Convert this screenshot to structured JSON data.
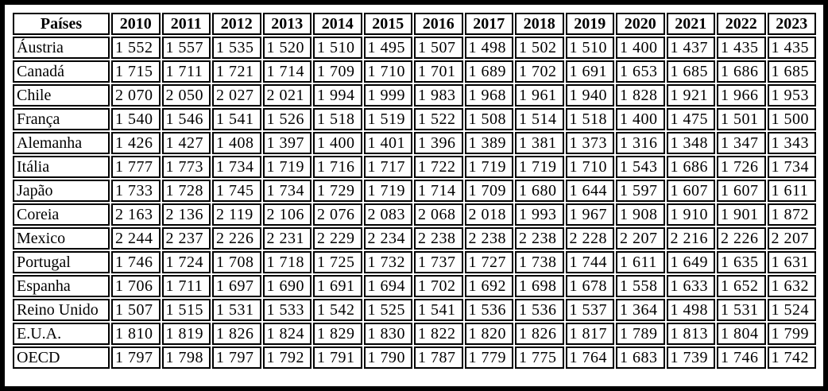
{
  "colors": {
    "frame_border": "#000000",
    "cell_border": "#000000",
    "background": "#ffffff",
    "text": "#000000"
  },
  "table": {
    "columns": [
      "Países",
      "2010",
      "2011",
      "2012",
      "2013",
      "2014",
      "2015",
      "2016",
      "2017",
      "2018",
      "2019",
      "2020",
      "2021",
      "2022",
      "2023"
    ],
    "rows": [
      {
        "label": "Áustria",
        "values": [
          "1 552",
          "1 557",
          "1 535",
          "1 520",
          "1 510",
          "1 495",
          "1 507",
          "1 498",
          "1 502",
          "1 510",
          "1 400",
          "1 437",
          "1 435",
          "1 435"
        ]
      },
      {
        "label": "Canadá",
        "values": [
          "1 715",
          "1 711",
          "1 721",
          "1 714",
          "1 709",
          "1 710",
          "1 701",
          "1 689",
          "1 702",
          "1 691",
          "1 653",
          "1 685",
          "1 686",
          "1 685"
        ]
      },
      {
        "label": "Chile",
        "values": [
          "2 070",
          "2 050",
          "2 027",
          "2 021",
          "1 994",
          "1 999",
          "1 983",
          "1 968",
          "1 961",
          "1 940",
          "1 828",
          "1 921",
          "1 966",
          "1 953"
        ]
      },
      {
        "label": "França",
        "values": [
          "1 540",
          "1 546",
          "1 541",
          "1 526",
          "1 518",
          "1 519",
          "1 522",
          "1 508",
          "1 514",
          "1 518",
          "1 400",
          "1 475",
          "1 501",
          "1 500"
        ]
      },
      {
        "label": "Alemanha",
        "values": [
          "1 426",
          "1 427",
          "1 408",
          "1 397",
          "1 400",
          "1 401",
          "1 396",
          "1 389",
          "1 381",
          "1 373",
          "1 316",
          "1 348",
          "1 347",
          "1 343"
        ]
      },
      {
        "label": "Itália",
        "values": [
          "1 777",
          "1 773",
          "1 734",
          "1 719",
          "1 716",
          "1 717",
          "1 722",
          "1 719",
          "1 719",
          "1 710",
          "1 543",
          "1 686",
          "1 726",
          "1 734"
        ]
      },
      {
        "label": "Japão",
        "values": [
          "1 733",
          "1 728",
          "1 745",
          "1 734",
          "1 729",
          "1 719",
          "1 714",
          "1 709",
          "1 680",
          "1 644",
          "1 597",
          "1 607",
          "1 607",
          "1 611"
        ]
      },
      {
        "label": "Coreia",
        "values": [
          "2 163",
          "2 136",
          "2 119",
          "2 106",
          "2 076",
          "2 083",
          "2 068",
          "2 018",
          "1 993",
          "1 967",
          "1 908",
          "1 910",
          "1 901",
          "1 872"
        ]
      },
      {
        "label": "Mexico",
        "values": [
          "2 244",
          "2 237",
          "2 226",
          "2 231",
          "2 229",
          "2 234",
          "2 238",
          "2 238",
          "2 238",
          "2 228",
          "2 207",
          "2 216",
          "2 226",
          "2 207"
        ]
      },
      {
        "label": "Portugal",
        "values": [
          "1 746",
          "1 724",
          "1 708",
          "1 718",
          "1 725",
          "1 732",
          "1 737",
          "1 727",
          "1 738",
          "1 744",
          "1 611",
          "1 649",
          "1 635",
          "1 631"
        ]
      },
      {
        "label": "Espanha",
        "values": [
          "1 706",
          "1 711",
          "1 697",
          "1 690",
          "1 691",
          "1 694",
          "1 702",
          "1 692",
          "1 698",
          "1 678",
          "1 558",
          "1 633",
          "1 652",
          "1 632"
        ]
      },
      {
        "label": "Reino Unido",
        "values": [
          "1 507",
          "1 515",
          "1 531",
          "1 533",
          "1 542",
          "1 525",
          "1 541",
          "1 536",
          "1 536",
          "1 537",
          "1 364",
          "1 498",
          "1 531",
          "1 524"
        ]
      },
      {
        "label": "E.U.A.",
        "values": [
          "1 810",
          "1 819",
          "1 826",
          "1 824",
          "1 829",
          "1 830",
          "1 822",
          "1 820",
          "1 826",
          "1 817",
          "1 789",
          "1 813",
          "1 804",
          "1 799"
        ]
      },
      {
        "label": "OECD",
        "values": [
          "1 797",
          "1 798",
          "1 797",
          "1 792",
          "1 791",
          "1 790",
          "1 787",
          "1 779",
          "1 775",
          "1 764",
          "1 683",
          "1 739",
          "1 746",
          "1 742"
        ]
      }
    ]
  },
  "chart_data": {
    "type": "table",
    "categories": [
      "2010",
      "2011",
      "2012",
      "2013",
      "2014",
      "2015",
      "2016",
      "2017",
      "2018",
      "2019",
      "2020",
      "2021",
      "2022",
      "2023"
    ],
    "row_header_label": "Países",
    "series": [
      {
        "name": "Áustria",
        "values": [
          1552,
          1557,
          1535,
          1520,
          1510,
          1495,
          1507,
          1498,
          1502,
          1510,
          1400,
          1437,
          1435,
          1435
        ]
      },
      {
        "name": "Canadá",
        "values": [
          1715,
          1711,
          1721,
          1714,
          1709,
          1710,
          1701,
          1689,
          1702,
          1691,
          1653,
          1685,
          1686,
          1685
        ]
      },
      {
        "name": "Chile",
        "values": [
          2070,
          2050,
          2027,
          2021,
          1994,
          1999,
          1983,
          1968,
          1961,
          1940,
          1828,
          1921,
          1966,
          1953
        ]
      },
      {
        "name": "França",
        "values": [
          1540,
          1546,
          1541,
          1526,
          1518,
          1519,
          1522,
          1508,
          1514,
          1518,
          1400,
          1475,
          1501,
          1500
        ]
      },
      {
        "name": "Alemanha",
        "values": [
          1426,
          1427,
          1408,
          1397,
          1400,
          1401,
          1396,
          1389,
          1381,
          1373,
          1316,
          1348,
          1347,
          1343
        ]
      },
      {
        "name": "Itália",
        "values": [
          1777,
          1773,
          1734,
          1719,
          1716,
          1717,
          1722,
          1719,
          1719,
          1710,
          1543,
          1686,
          1726,
          1734
        ]
      },
      {
        "name": "Japão",
        "values": [
          1733,
          1728,
          1745,
          1734,
          1729,
          1719,
          1714,
          1709,
          1680,
          1644,
          1597,
          1607,
          1607,
          1611
        ]
      },
      {
        "name": "Coreia",
        "values": [
          2163,
          2136,
          2119,
          2106,
          2076,
          2083,
          2068,
          2018,
          1993,
          1967,
          1908,
          1910,
          1901,
          1872
        ]
      },
      {
        "name": "Mexico",
        "values": [
          2244,
          2237,
          2226,
          2231,
          2229,
          2234,
          2238,
          2238,
          2238,
          2228,
          2207,
          2216,
          2226,
          2207
        ]
      },
      {
        "name": "Portugal",
        "values": [
          1746,
          1724,
          1708,
          1718,
          1725,
          1732,
          1737,
          1727,
          1738,
          1744,
          1611,
          1649,
          1635,
          1631
        ]
      },
      {
        "name": "Espanha",
        "values": [
          1706,
          1711,
          1697,
          1690,
          1691,
          1694,
          1702,
          1692,
          1698,
          1678,
          1558,
          1633,
          1652,
          1632
        ]
      },
      {
        "name": "Reino Unido",
        "values": [
          1507,
          1515,
          1531,
          1533,
          1542,
          1525,
          1541,
          1536,
          1536,
          1537,
          1364,
          1498,
          1531,
          1524
        ]
      },
      {
        "name": "E.U.A.",
        "values": [
          1810,
          1819,
          1826,
          1824,
          1829,
          1830,
          1822,
          1820,
          1826,
          1817,
          1789,
          1813,
          1804,
          1799
        ]
      },
      {
        "name": "OECD",
        "values": [
          1797,
          1798,
          1797,
          1792,
          1791,
          1790,
          1787,
          1779,
          1775,
          1764,
          1683,
          1739,
          1746,
          1742
        ]
      }
    ]
  }
}
